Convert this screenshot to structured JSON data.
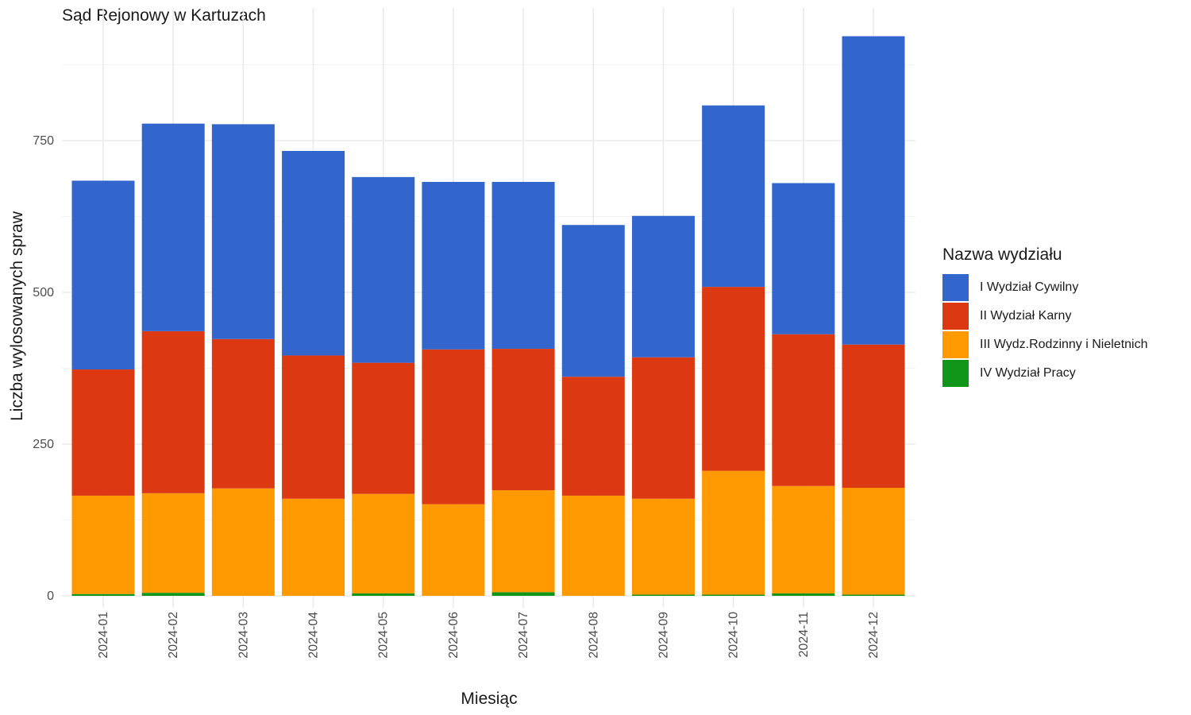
{
  "chart_data": {
    "type": "bar",
    "stacked": true,
    "title": "Sąd Rejonowy w Kartuzach",
    "xlabel": "Miesiąc",
    "ylabel": "Liczba wylosowanych spraw",
    "ylim": [
      0,
      950
    ],
    "yticks": [
      0,
      250,
      500,
      750
    ],
    "grid": true,
    "legend_title": "Nazwa wydziału",
    "legend_position": "right",
    "categories": [
      "2024-01",
      "2024-02",
      "2024-03",
      "2024-04",
      "2024-05",
      "2024-06",
      "2024-07",
      "2024-08",
      "2024-09",
      "2024-10",
      "2024-11",
      "2024-12"
    ],
    "series": [
      {
        "name": "I Wydział Cywilny",
        "color": "#3366CC",
        "values": [
          311,
          342,
          354,
          337,
          306,
          276,
          275,
          250,
          233,
          299,
          249,
          508
        ]
      },
      {
        "name": "II Wydział Karny",
        "color": "#DC3912",
        "values": [
          208,
          267,
          246,
          236,
          216,
          255,
          233,
          196,
          233,
          303,
          250,
          236
        ]
      },
      {
        "name": "III Wydz.Rodzinny i Nieletnich",
        "color": "#FF9900",
        "values": [
          162,
          164,
          177,
          160,
          164,
          151,
          168,
          165,
          158,
          204,
          177,
          176
        ]
      },
      {
        "name": "IV Wydział Pracy",
        "color": "#109618",
        "values": [
          3,
          5,
          0,
          0,
          4,
          0,
          6,
          0,
          2,
          2,
          4,
          2
        ]
      }
    ]
  }
}
